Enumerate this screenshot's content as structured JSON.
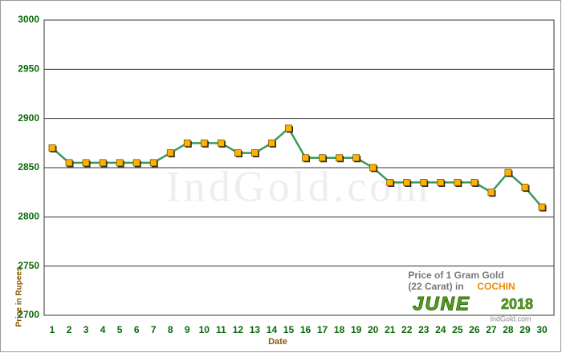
{
  "chart_data": {
    "type": "line",
    "x_label": "Date",
    "y_label": "Price in Rupees",
    "watermark": "IndGold.com",
    "annotation": {
      "line1": "Price of 1 Gram Gold",
      "line2": "(22 Carat) in",
      "city": "COCHIN",
      "month": "JUNE",
      "year": "2018",
      "site": "IndGold.com"
    },
    "categories": [
      "1",
      "2",
      "3",
      "4",
      "5",
      "6",
      "7",
      "8",
      "9",
      "10",
      "11",
      "12",
      "13",
      "14",
      "15",
      "16",
      "17",
      "18",
      "19",
      "20",
      "21",
      "22",
      "23",
      "24",
      "25",
      "26",
      "27",
      "28",
      "29",
      "30"
    ],
    "values": [
      2870,
      2855,
      2855,
      2855,
      2855,
      2855,
      2855,
      2865,
      2875,
      2875,
      2875,
      2865,
      2865,
      2875,
      2890,
      2860,
      2860,
      2860,
      2860,
      2850,
      2835,
      2835,
      2835,
      2835,
      2835,
      2835,
      2825,
      2845,
      2830,
      2810
    ],
    "color": "#3a9a5a",
    "marker_color": "#ffb300",
    "ylim": [
      2700,
      3000
    ],
    "yticks": [
      2700,
      2750,
      2800,
      2850,
      2900,
      2950,
      3000
    ],
    "grid": true
  }
}
